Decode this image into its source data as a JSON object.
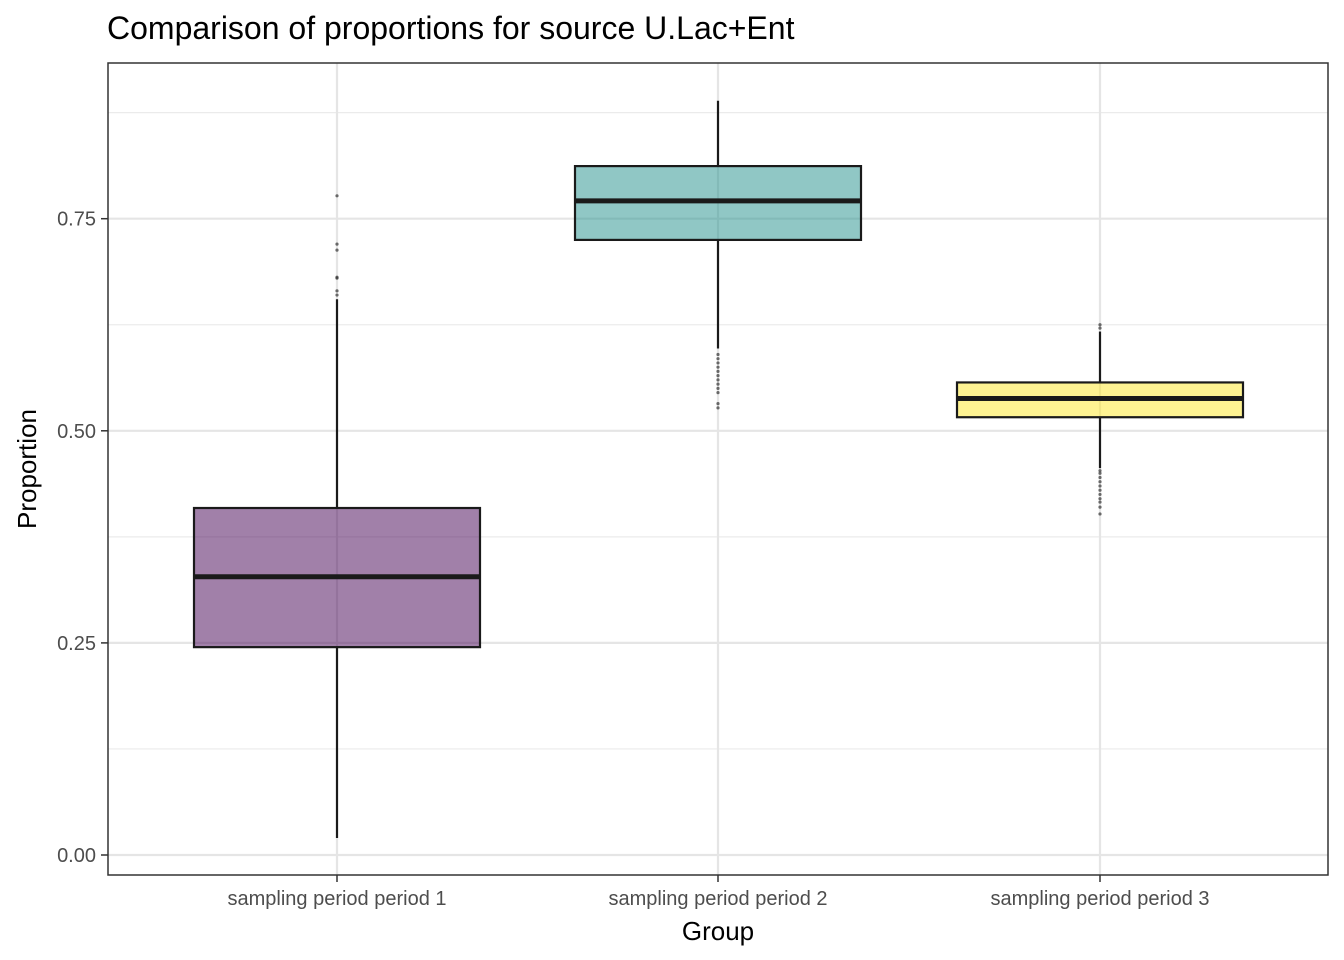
{
  "chart_data": {
    "type": "boxplot",
    "title": "Comparison of proportions for source U.Lac+Ent",
    "xlabel": "Group",
    "ylabel": "Proportion",
    "ylim": [
      -0.04,
      0.93
    ],
    "yticks": [
      0.0,
      0.25,
      0.5,
      0.75
    ],
    "ytick_labels": [
      "0.00",
      "0.25",
      "0.50",
      "0.75"
    ],
    "grid": true,
    "categories": [
      "sampling period period 1",
      "sampling period period 2",
      "sampling period period 3"
    ],
    "boxes": [
      {
        "group": "sampling period period 1",
        "color": "#440154",
        "whisker_low": 0.02,
        "q1": 0.245,
        "median": 0.328,
        "q3": 0.409,
        "whisker_high": 0.655,
        "outliers": [
          0.66,
          0.665,
          0.68,
          0.681,
          0.713,
          0.72,
          0.777
        ]
      },
      {
        "group": "sampling period period 2",
        "color": "#21908C",
        "whisker_low": 0.597,
        "q1": 0.725,
        "median": 0.771,
        "q3": 0.812,
        "whisker_high": 0.889,
        "outliers": [
          0.527,
          0.532,
          0.545,
          0.55,
          0.555,
          0.56,
          0.565,
          0.57,
          0.575,
          0.58,
          0.585,
          0.59
        ]
      },
      {
        "group": "sampling period period 3",
        "color": "#FDE725",
        "whisker_low": 0.456,
        "q1": 0.516,
        "median": 0.538,
        "q3": 0.557,
        "whisker_high": 0.617,
        "outliers": [
          0.402,
          0.41,
          0.416,
          0.42,
          0.425,
          0.43,
          0.435,
          0.44,
          0.445,
          0.45,
          0.453,
          0.621,
          0.625
        ]
      }
    ]
  }
}
